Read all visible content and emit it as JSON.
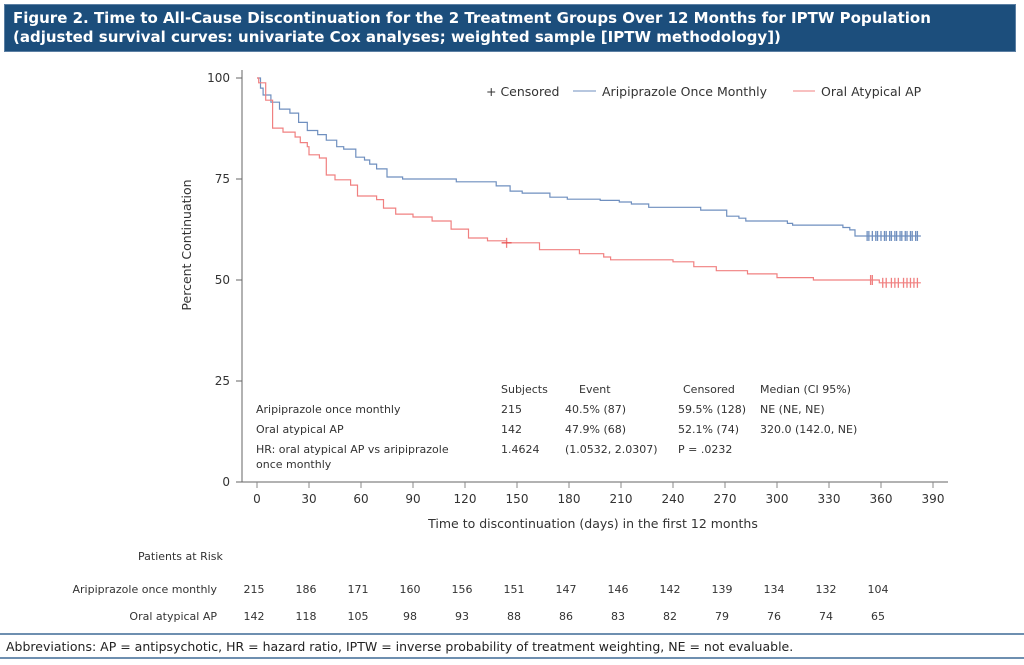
{
  "header": {
    "title": "Figure 2. Time to All-Cause Discontinuation for the 2 Treatment Groups Over 12 Months for IPTW Population (adjusted survival curves: univariate Cox analyses; weighted sample [IPTW methodology])"
  },
  "chart_data": {
    "type": "line",
    "subtype": "kaplan-meier step",
    "xlabel": "Time to discontinuation (days) in the first 12 months",
    "ylabel": "Percent Continuation",
    "xlim": [
      0,
      390
    ],
    "ylim": [
      0,
      100
    ],
    "xticks": [
      "0",
      "30",
      "60",
      "90",
      "120",
      "150",
      "180",
      "210",
      "240",
      "270",
      "300",
      "330",
      "360",
      "390"
    ],
    "yticks": [
      "0",
      "25",
      "50",
      "75",
      "100"
    ],
    "legend": {
      "position": "top-right",
      "censored_label": "+ Censored",
      "censored_symbol": "+"
    },
    "series": [
      {
        "name": "Aripiprazole Once Monthly",
        "color": "#6f8fbf",
        "steps": [
          [
            0,
            100
          ],
          [
            2,
            97.5
          ],
          [
            3.5,
            95.8
          ],
          [
            8,
            94
          ],
          [
            13,
            92.3
          ],
          [
            19,
            91.3
          ],
          [
            24,
            89
          ],
          [
            29,
            87
          ],
          [
            35,
            86
          ],
          [
            40,
            84.6
          ],
          [
            46,
            83
          ],
          [
            50,
            82.4
          ],
          [
            57,
            80.4
          ],
          [
            62,
            79.7
          ],
          [
            65,
            78.7
          ],
          [
            69,
            77.5
          ],
          [
            75,
            75.5
          ],
          [
            84,
            75
          ],
          [
            115,
            74.3
          ],
          [
            138,
            73.3
          ],
          [
            146,
            72
          ],
          [
            153,
            71.5
          ],
          [
            169,
            70.5
          ],
          [
            179,
            70
          ],
          [
            198,
            69.7
          ],
          [
            209,
            69.3
          ],
          [
            216,
            68.8
          ],
          [
            226,
            68
          ],
          [
            256,
            67.3
          ],
          [
            271,
            65.8
          ],
          [
            278,
            65.3
          ],
          [
            282,
            64.6
          ],
          [
            306,
            64
          ],
          [
            309,
            63.6
          ],
          [
            338,
            63
          ],
          [
            342,
            62.4
          ],
          [
            345,
            60.9
          ]
        ],
        "end_day": 383,
        "censored_days": [
          352,
          353,
          355,
          357,
          358,
          360,
          362,
          363,
          365,
          366,
          368,
          369,
          371,
          372,
          374,
          375,
          377,
          378,
          380,
          381
        ]
      },
      {
        "name": "Oral Atypical AP",
        "color": "#f08080",
        "steps": [
          [
            0,
            100
          ],
          [
            1,
            98.8
          ],
          [
            5,
            94.5
          ],
          [
            9,
            87.6
          ],
          [
            15,
            86.6
          ],
          [
            22,
            85.4
          ],
          [
            25,
            84
          ],
          [
            29,
            83
          ],
          [
            30,
            81
          ],
          [
            36,
            80.2
          ],
          [
            40,
            76
          ],
          [
            45,
            74.8
          ],
          [
            54,
            73.5
          ],
          [
            58,
            70.8
          ],
          [
            69,
            69.9
          ],
          [
            73,
            67.8
          ],
          [
            80,
            66.3
          ],
          [
            90,
            65.6
          ],
          [
            101,
            64.6
          ],
          [
            112,
            62.6
          ],
          [
            122,
            60.4
          ],
          [
            133,
            59.7
          ],
          [
            144,
            59.2
          ],
          [
            163,
            57.5
          ],
          [
            186,
            56.5
          ],
          [
            200,
            55.7
          ],
          [
            204,
            55
          ],
          [
            240,
            54.5
          ],
          [
            252,
            53.3
          ],
          [
            265,
            52.3
          ],
          [
            283,
            51.5
          ],
          [
            300,
            50.6
          ],
          [
            321,
            50
          ],
          [
            359,
            49.3
          ]
        ],
        "end_day": 383,
        "censored_days": [
          144,
          354,
          355,
          361,
          363,
          366,
          368,
          370,
          373,
          375,
          377,
          379,
          381
        ]
      }
    ],
    "stats_table": {
      "headers": [
        "Subjects",
        "Event",
        "Censored",
        "Median (CI 95%)"
      ],
      "rows": [
        {
          "label": "Aripiprazole once monthly",
          "cells": [
            "215",
            "40.5% (87)",
            "59.5% (128)",
            "NE (NE, NE)"
          ]
        },
        {
          "label": "Oral atypical AP",
          "cells": [
            "142",
            "47.9% (68)",
            "52.1% (74)",
            "320.0 (142.0, NE)"
          ]
        },
        {
          "label": "HR: oral atypical AP vs aripiprazole",
          "label2": "once monthly",
          "cells": [
            "1.4624",
            "(1.0532,  2.0307)",
            "P = .0232",
            ""
          ]
        }
      ]
    },
    "at_risk": {
      "title": "Patients at Risk",
      "rows": [
        {
          "label": "Aripiprazole once monthly",
          "values": [
            "215",
            "186",
            "171",
            "160",
            "156",
            "151",
            "147",
            "146",
            "142",
            "139",
            "134",
            "132",
            "104"
          ]
        },
        {
          "label": "Oral atypical AP",
          "values": [
            "142",
            "118",
            "105",
            "98",
            "93",
            "88",
            "86",
            "83",
            "82",
            "79",
            "76",
            "74",
            "65"
          ]
        }
      ]
    }
  },
  "footer": {
    "text": "Abbreviations: AP = antipsychotic, HR = hazard ratio, IPTW = inverse probability of treatment weighting, NE = not evaluable."
  }
}
